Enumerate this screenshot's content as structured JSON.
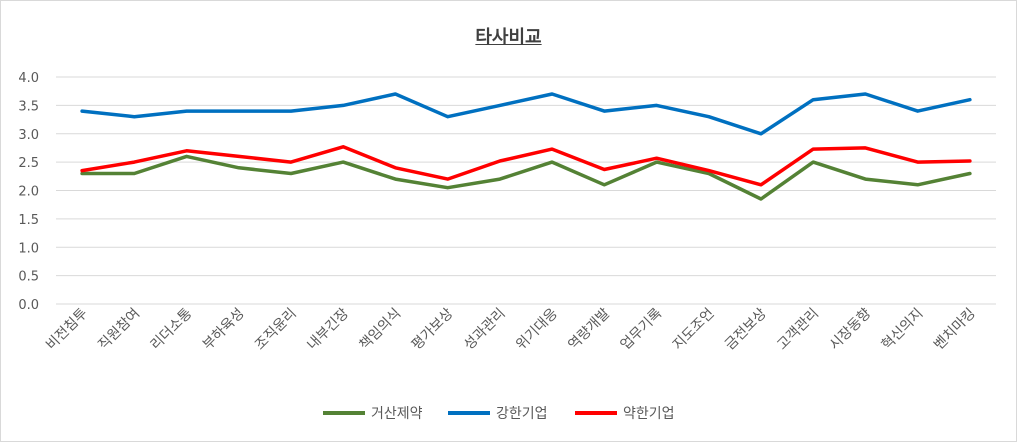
{
  "chart_data": {
    "type": "line",
    "title": "타사비교",
    "xlabel": "",
    "ylabel": "",
    "ylim": [
      0,
      4
    ],
    "yticks": [
      "0.0",
      "0.5",
      "1.0",
      "1.5",
      "2.0",
      "2.5",
      "3.0",
      "3.5",
      "4.0"
    ],
    "grid": true,
    "legend_position": "bottom",
    "categories": [
      "비전침투",
      "직원참여",
      "리더소통",
      "부하육성",
      "조직윤리",
      "내부긴장",
      "책임의식",
      "평가보상",
      "성과관리",
      "위기대응",
      "역량개발",
      "업무기록",
      "지도조언",
      "금전보상",
      "고객관리",
      "시장동향",
      "혁신의지",
      "벤치마킹"
    ],
    "series": [
      {
        "name": "거산제약",
        "color": "#548235",
        "values": [
          2.3,
          2.3,
          2.6,
          2.4,
          2.3,
          2.5,
          2.2,
          2.05,
          2.2,
          2.5,
          2.1,
          2.5,
          2.3,
          1.85,
          2.5,
          2.2,
          2.1,
          2.3
        ]
      },
      {
        "name": "강한기업",
        "color": "#0070c0",
        "values": [
          3.4,
          3.3,
          3.4,
          3.4,
          3.4,
          3.5,
          3.7,
          3.3,
          3.5,
          3.7,
          3.4,
          3.5,
          3.3,
          3.0,
          3.6,
          3.7,
          3.4,
          3.6
        ]
      },
      {
        "name": "약한기업",
        "color": "#ff0000",
        "values": [
          2.35,
          2.5,
          2.7,
          2.6,
          2.5,
          2.77,
          2.4,
          2.2,
          2.52,
          2.73,
          2.37,
          2.57,
          2.35,
          2.1,
          2.73,
          2.75,
          2.5,
          2.52
        ]
      }
    ]
  }
}
